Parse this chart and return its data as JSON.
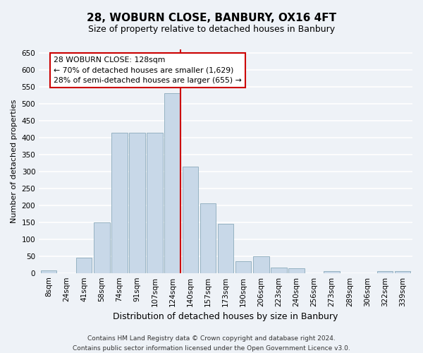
{
  "title": "28, WOBURN CLOSE, BANBURY, OX16 4FT",
  "subtitle": "Size of property relative to detached houses in Banbury",
  "xlabel": "Distribution of detached houses by size in Banbury",
  "ylabel": "Number of detached properties",
  "bar_labels": [
    "8sqm",
    "24sqm",
    "41sqm",
    "58sqm",
    "74sqm",
    "91sqm",
    "107sqm",
    "124sqm",
    "140sqm",
    "157sqm",
    "173sqm",
    "190sqm",
    "206sqm",
    "223sqm",
    "240sqm",
    "256sqm",
    "273sqm",
    "289sqm",
    "306sqm",
    "322sqm",
    "339sqm"
  ],
  "bar_values": [
    8,
    0,
    45,
    150,
    415,
    415,
    415,
    530,
    315,
    205,
    145,
    35,
    50,
    15,
    13,
    0,
    5,
    0,
    0,
    5,
    5
  ],
  "bar_color": "#c8d8e8",
  "bar_edge_color": "#8aaabb",
  "vline_color": "#cc0000",
  "vline_bar_index": 7,
  "ylim": [
    0,
    660
  ],
  "yticks": [
    0,
    50,
    100,
    150,
    200,
    250,
    300,
    350,
    400,
    450,
    500,
    550,
    600,
    650
  ],
  "annotation_title": "28 WOBURN CLOSE: 128sqm",
  "annotation_line1": "← 70% of detached houses are smaller (1,629)",
  "annotation_line2": "28% of semi-detached houses are larger (655) →",
  "annotation_box_facecolor": "#ffffff",
  "annotation_box_edgecolor": "#cc0000",
  "footer_line1": "Contains HM Land Registry data © Crown copyright and database right 2024.",
  "footer_line2": "Contains public sector information licensed under the Open Government Licence v3.0.",
  "background_color": "#eef2f7",
  "plot_bg_color": "#eef2f7",
  "grid_color": "#ffffff",
  "title_fontsize": 11,
  "subtitle_fontsize": 9,
  "ylabel_fontsize": 8,
  "xlabel_fontsize": 9,
  "tick_fontsize": 7.5,
  "footer_fontsize": 6.5
}
